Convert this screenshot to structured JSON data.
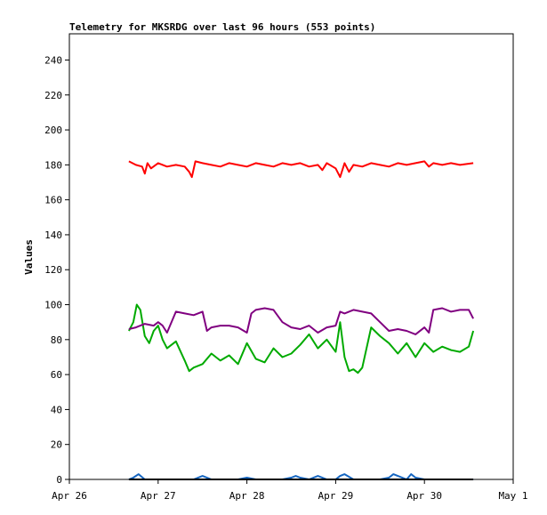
{
  "chart_data": {
    "type": "line",
    "title": "Telemetry for MKSRDG over last 96 hours (553 points)",
    "xlabel": "",
    "ylabel": "Values",
    "x_tick_labels": [
      "Apr 26",
      "Apr 27",
      "Apr 28",
      "Apr 29",
      "Apr 30",
      "May 1"
    ],
    "x_range_days": [
      0,
      5
    ],
    "ylim": [
      0,
      255
    ],
    "y_ticks": [
      0,
      20,
      40,
      60,
      80,
      100,
      120,
      140,
      160,
      180,
      200,
      220,
      240
    ],
    "grid": false,
    "legend": "none",
    "series": [
      {
        "color": "#ff0000",
        "x": [
          0.67,
          0.75,
          0.82,
          0.85,
          0.88,
          0.92,
          1.0,
          1.1,
          1.2,
          1.3,
          1.35,
          1.38,
          1.42,
          1.5,
          1.6,
          1.7,
          1.8,
          1.9,
          2.0,
          2.1,
          2.2,
          2.3,
          2.4,
          2.5,
          2.6,
          2.7,
          2.8,
          2.85,
          2.9,
          3.0,
          3.05,
          3.1,
          3.15,
          3.2,
          3.3,
          3.4,
          3.5,
          3.6,
          3.7,
          3.8,
          3.9,
          4.0,
          4.05,
          4.1,
          4.2,
          4.3,
          4.4,
          4.55
        ],
        "values": [
          182,
          180,
          179,
          175,
          181,
          178,
          181,
          179,
          180,
          179,
          176,
          173,
          182,
          181,
          180,
          179,
          181,
          180,
          179,
          181,
          180,
          179,
          181,
          180,
          181,
          179,
          180,
          177,
          181,
          178,
          173,
          181,
          176,
          180,
          179,
          181,
          180,
          179,
          181,
          180,
          181,
          182,
          179,
          181,
          180,
          181,
          180,
          181
        ]
      },
      {
        "color": "#00aa00",
        "x": [
          0.67,
          0.72,
          0.76,
          0.8,
          0.85,
          0.9,
          0.95,
          1.0,
          1.05,
          1.1,
          1.2,
          1.3,
          1.35,
          1.4,
          1.5,
          1.6,
          1.7,
          1.8,
          1.9,
          2.0,
          2.1,
          2.2,
          2.3,
          2.4,
          2.5,
          2.6,
          2.7,
          2.8,
          2.9,
          3.0,
          3.05,
          3.1,
          3.15,
          3.2,
          3.25,
          3.3,
          3.4,
          3.5,
          3.6,
          3.65,
          3.7,
          3.8,
          3.9,
          4.0,
          4.1,
          4.2,
          4.3,
          4.4,
          4.5,
          4.55
        ],
        "values": [
          85,
          90,
          100,
          97,
          82,
          78,
          85,
          88,
          80,
          75,
          79,
          68,
          62,
          64,
          66,
          72,
          68,
          71,
          66,
          78,
          69,
          67,
          75,
          70,
          72,
          77,
          83,
          75,
          80,
          73,
          90,
          70,
          62,
          63,
          61,
          64,
          87,
          82,
          78,
          75,
          72,
          78,
          70,
          78,
          73,
          76,
          74,
          73,
          76,
          85
        ]
      },
      {
        "color": "#800080",
        "x": [
          0.67,
          0.75,
          0.85,
          0.95,
          1.0,
          1.05,
          1.1,
          1.2,
          1.3,
          1.4,
          1.5,
          1.55,
          1.6,
          1.7,
          1.8,
          1.9,
          2.0,
          2.05,
          2.1,
          2.2,
          2.3,
          2.4,
          2.5,
          2.6,
          2.7,
          2.8,
          2.9,
          3.0,
          3.05,
          3.1,
          3.2,
          3.3,
          3.4,
          3.5,
          3.6,
          3.7,
          3.8,
          3.9,
          4.0,
          4.05,
          4.1,
          4.2,
          4.3,
          4.4,
          4.5,
          4.55
        ],
        "values": [
          86,
          87,
          89,
          88,
          90,
          88,
          84,
          96,
          95,
          94,
          96,
          85,
          87,
          88,
          88,
          87,
          84,
          95,
          97,
          98,
          97,
          90,
          87,
          86,
          88,
          84,
          87,
          88,
          96,
          95,
          97,
          96,
          95,
          90,
          85,
          86,
          85,
          83,
          87,
          84,
          97,
          98,
          96,
          97,
          97,
          92
        ]
      },
      {
        "color": "#1565c0",
        "x": [
          0.67,
          0.72,
          0.78,
          0.85,
          1.0,
          1.2,
          1.3,
          1.4,
          1.5,
          1.6,
          1.7,
          1.8,
          1.9,
          2.0,
          2.1,
          2.2,
          2.3,
          2.4,
          2.5,
          2.55,
          2.6,
          2.7,
          2.8,
          2.9,
          3.0,
          3.05,
          3.1,
          3.2,
          3.3,
          3.4,
          3.5,
          3.6,
          3.65,
          3.7,
          3.8,
          3.85,
          3.9,
          4.0,
          4.1,
          4.2,
          4.3,
          4.4,
          4.55
        ],
        "values": [
          0,
          1,
          3,
          0,
          0,
          0,
          0,
          0,
          2,
          0,
          0,
          0,
          0,
          1,
          0,
          0,
          0,
          0,
          1,
          2,
          1,
          0,
          2,
          0,
          0,
          2,
          3,
          0,
          0,
          0,
          0,
          1,
          3,
          2,
          0,
          3,
          1,
          0,
          0,
          0,
          0,
          0,
          0
        ]
      },
      {
        "color": "#000000",
        "x": [
          0.67,
          1.0,
          2.0,
          3.0,
          4.0,
          4.55
        ],
        "values": [
          0,
          0,
          0,
          0,
          0,
          0
        ]
      }
    ]
  }
}
